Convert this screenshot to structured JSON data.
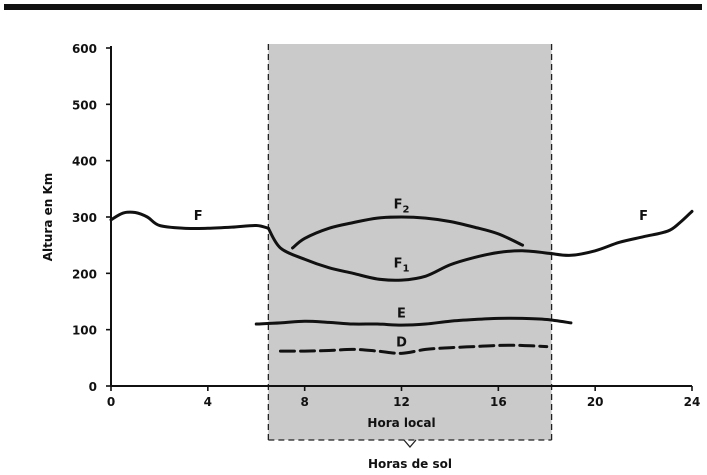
{
  "chart_data": {
    "type": "line",
    "xlabel": "Hora local",
    "ylabel": "Altura  en  Km",
    "shaded_label": "Horas de sol",
    "xlim": [
      0,
      24
    ],
    "ylim": [
      0,
      600
    ],
    "xticks": [
      0,
      4,
      8,
      12,
      16,
      20,
      24
    ],
    "yticks": [
      0,
      100,
      200,
      300,
      400,
      500,
      600
    ],
    "shaded_region": [
      6.5,
      18.2
    ],
    "series": [
      {
        "name": "F",
        "label_pos": [
          3.6,
          295
        ],
        "x": [
          0,
          0.5,
          1,
          1.5,
          2,
          3,
          4,
          5,
          6,
          6.5
        ],
        "y": [
          295,
          307,
          308,
          300,
          285,
          280,
          280,
          282,
          285,
          280
        ]
      },
      {
        "name": "F",
        "label_pos": [
          22,
          295
        ],
        "x": [
          18.2,
          19,
          20,
          21,
          22,
          23,
          23.5,
          24
        ],
        "y": [
          235,
          232,
          240,
          255,
          265,
          275,
          290,
          310
        ]
      },
      {
        "name": "F1",
        "label_pos": [
          12,
          210
        ],
        "x": [
          6.5,
          7,
          8,
          9,
          10,
          11,
          12,
          13,
          14,
          15,
          16,
          17,
          18.2
        ],
        "y": [
          280,
          245,
          225,
          210,
          200,
          190,
          188,
          195,
          215,
          228,
          237,
          240,
          235
        ]
      },
      {
        "name": "F2",
        "label_pos": [
          12,
          315
        ],
        "x": [
          7.5,
          8,
          9,
          10,
          11,
          12,
          13,
          14,
          15,
          16,
          17
        ],
        "y": [
          245,
          262,
          280,
          290,
          298,
          300,
          298,
          292,
          282,
          270,
          250
        ]
      },
      {
        "name": "E",
        "label_pos": [
          12,
          122
        ],
        "x": [
          6,
          7,
          8,
          9,
          10,
          11,
          12,
          13,
          14,
          15,
          16,
          17,
          18,
          19
        ],
        "y": [
          110,
          112,
          115,
          113,
          110,
          110,
          108,
          110,
          115,
          118,
          120,
          120,
          118,
          112
        ]
      },
      {
        "name": "D",
        "label_pos": [
          12,
          70
        ],
        "x": [
          7,
          8,
          9,
          10,
          11,
          12,
          13,
          14,
          15,
          16,
          17,
          18
        ],
        "y": [
          62,
          62,
          63,
          65,
          62,
          58,
          65,
          68,
          70,
          72,
          72,
          70
        ]
      }
    ]
  }
}
